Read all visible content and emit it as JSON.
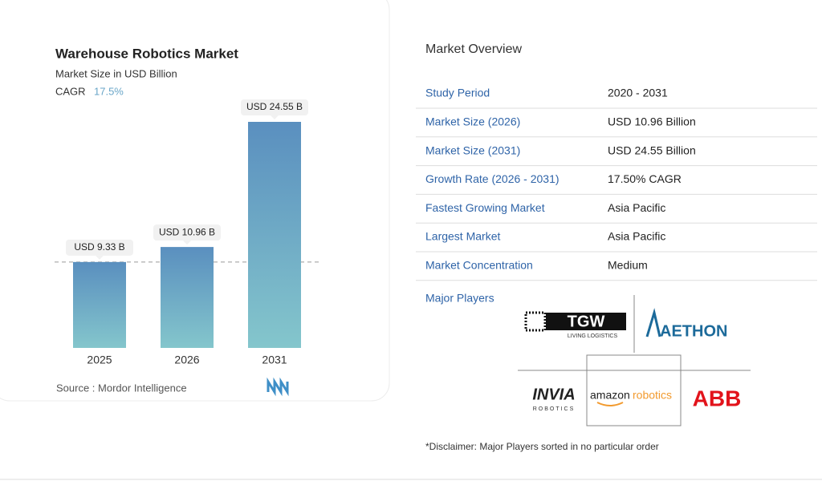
{
  "chart_data": {
    "type": "bar",
    "title": "Warehouse Robotics Market",
    "subtitle": "Market Size in USD Billion",
    "cagr_label": "CAGR",
    "cagr": "17.5%",
    "categories": [
      "2025",
      "2026",
      "2031"
    ],
    "values": [
      9.33,
      10.96,
      24.55
    ],
    "value_labels": [
      "USD 9.33 B",
      "USD 10.96 B",
      "USD 24.55 B"
    ],
    "color": "#5a8fbf",
    "source": "Source :  Mordor Intelligence"
  },
  "overview": {
    "title": "Market Overview",
    "rows": [
      [
        "Study Period",
        "2020 - 2031"
      ],
      [
        "Market Size (2026)",
        "USD 10.96 Billion"
      ],
      [
        "Market Size (2031)",
        "USD 24.55 Billion"
      ],
      [
        "Growth Rate (2026 - 2031)",
        "17.50% CAGR"
      ],
      [
        "Fastest Growing Market",
        "Asia Pacific"
      ],
      [
        "Largest Market",
        "Asia Pacific"
      ],
      [
        "Market Concentration",
        "Medium"
      ]
    ]
  },
  "players": {
    "title": "Major Players",
    "tgw": "TGW",
    "tgw_sub": "LIVING LOGISTICS",
    "aethon": "AETHON",
    "invia": "INVIA",
    "invia_sub": "ROBOTICS",
    "amazon": "amazon",
    "amazon_robotics": "robotics",
    "abb": "ABB"
  },
  "disclaimer": "*Disclaimer: Major Players sorted in no particular order"
}
